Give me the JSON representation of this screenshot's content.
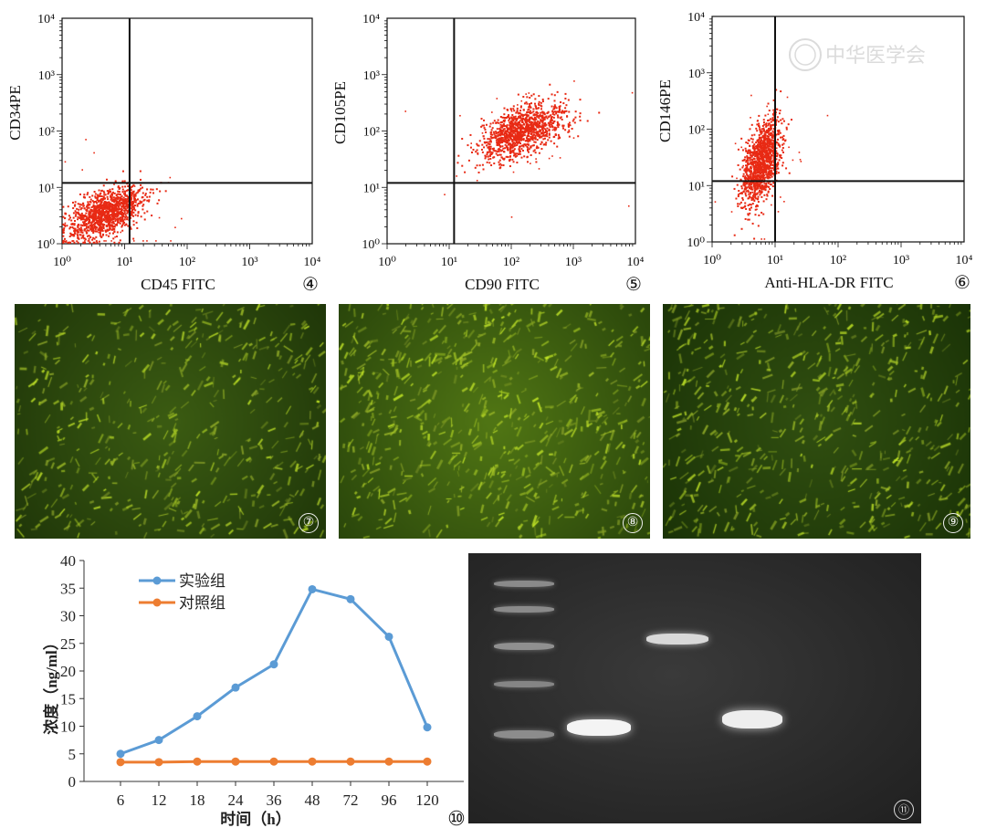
{
  "chart_data": [
    {
      "type": "scatter",
      "panel": "④",
      "xlabel": "CD45 FITC",
      "ylabel": "CD34PE",
      "x_scale": "log",
      "y_scale": "log",
      "xlim": [
        1,
        10000
      ],
      "ylim": [
        1,
        10000
      ],
      "x_ticks": [
        "10⁰",
        "10¹",
        "10²",
        "10³",
        "10⁴"
      ],
      "y_ticks": [
        "10⁰",
        "10¹",
        "10²",
        "10³",
        "10⁴"
      ],
      "gate": {
        "x": 12,
        "y": 12
      },
      "cluster": {
        "x_center": 5,
        "y_center": 3.5,
        "x_spread": 0.3,
        "y_spread": 0.25
      },
      "color": "#e82a14"
    },
    {
      "type": "scatter",
      "panel": "⑤",
      "xlabel": "CD90 FITC",
      "ylabel": "CD105PE",
      "x_scale": "log",
      "y_scale": "log",
      "xlim": [
        1,
        10000
      ],
      "ylim": [
        1,
        10000
      ],
      "x_ticks": [
        "10⁰",
        "10¹",
        "10²",
        "10³",
        "10⁴"
      ],
      "y_ticks": [
        "10⁰",
        "10¹",
        "10²",
        "10³",
        "10⁴"
      ],
      "gate": {
        "x": 12,
        "y": 12
      },
      "cluster": {
        "x_center": 150,
        "y_center": 100,
        "x_spread": 0.35,
        "y_spread": 0.25
      },
      "color": "#e82a14"
    },
    {
      "type": "scatter",
      "panel": "⑥",
      "xlabel": "Anti-HLA-DR FITC",
      "ylabel": "CD146PE",
      "x_scale": "log",
      "y_scale": "log",
      "xlim": [
        1,
        10000
      ],
      "ylim": [
        1,
        10000
      ],
      "x_ticks": [
        "10⁰",
        "10¹",
        "10²",
        "10³",
        "10⁴"
      ],
      "y_ticks": [
        "10⁰",
        "10¹",
        "10²",
        "10³",
        "10⁴"
      ],
      "gate": {
        "x": 10,
        "y": 12
      },
      "cluster": {
        "x_center": 6,
        "y_center": 25,
        "x_spread": 0.15,
        "y_spread": 0.4
      },
      "color": "#e82a14"
    },
    {
      "type": "line",
      "panel": "⑩",
      "xlabel": "时间（h）",
      "ylabel": "浓度（ng/ml）",
      "categories": [
        "6",
        "12",
        "18",
        "24",
        "36",
        "48",
        "72",
        "96",
        "120"
      ],
      "ylim": [
        0,
        40
      ],
      "y_ticks": [
        "0",
        "5",
        "10",
        "15",
        "20",
        "25",
        "30",
        "35",
        "40"
      ],
      "legend_position": "top-left",
      "series": [
        {
          "name": "实验组",
          "values": [
            5,
            7.5,
            11.8,
            17,
            21.2,
            34.8,
            33,
            26.2,
            9.8
          ],
          "color": "#5b9bd5"
        },
        {
          "name": "对照组",
          "values": [
            3.5,
            3.5,
            3.6,
            3.6,
            3.6,
            3.6,
            3.6,
            3.6,
            3.6
          ],
          "color": "#ed7d31"
        }
      ]
    }
  ],
  "micrographs": [
    {
      "panel": "⑦"
    },
    {
      "panel": "⑧"
    },
    {
      "panel": "⑨"
    }
  ],
  "gel": {
    "panel": "⑪"
  },
  "watermark": {
    "text": "中华医学会"
  }
}
